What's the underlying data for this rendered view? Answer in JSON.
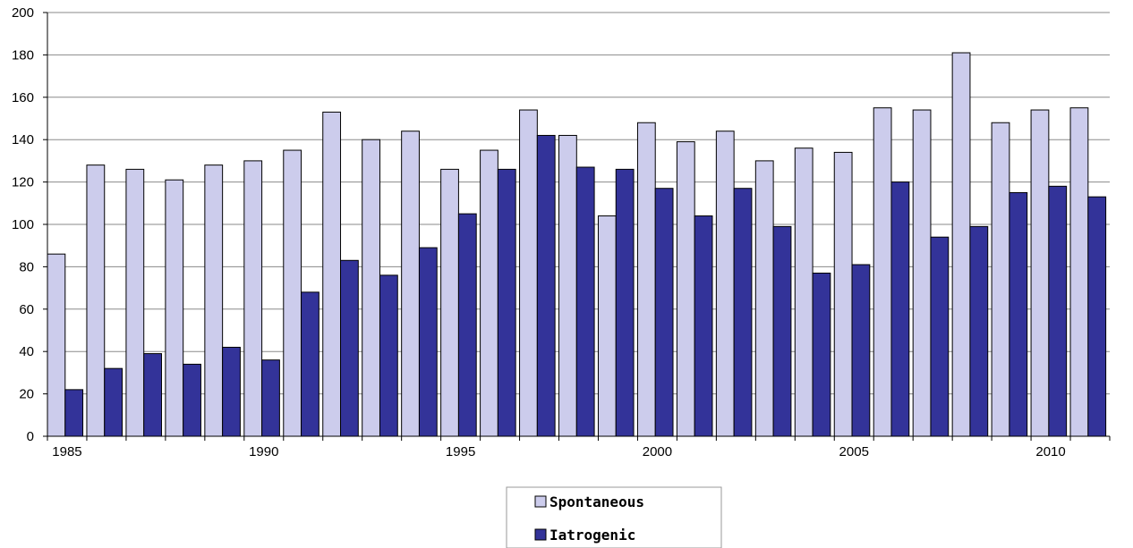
{
  "chart_data": {
    "type": "bar",
    "x": [
      1985,
      1986,
      1987,
      1988,
      1989,
      1990,
      1991,
      1992,
      1993,
      1994,
      1995,
      1996,
      1997,
      1998,
      1999,
      2000,
      2001,
      2002,
      2003,
      2004,
      2005,
      2006,
      2007,
      2008,
      2009,
      2010,
      2011
    ],
    "x_tick_labels": [
      "1985",
      "1990",
      "1995",
      "2000",
      "2005",
      "2010"
    ],
    "y_tick_labels": [
      "0",
      "20",
      "40",
      "60",
      "80",
      "100",
      "120",
      "140",
      "160",
      "180",
      "200"
    ],
    "ylim": [
      0,
      200
    ],
    "grid": true,
    "legend_position": "bottom-center",
    "series": [
      {
        "name": "Spontaneous",
        "color": "#ccccec",
        "values": [
          86,
          128,
          126,
          121,
          128,
          130,
          135,
          153,
          140,
          144,
          126,
          135,
          154,
          142,
          104,
          148,
          139,
          144,
          130,
          136,
          134,
          155,
          154,
          181,
          148,
          154,
          155
        ]
      },
      {
        "name": "Iatrogenic",
        "color": "#333399",
        "values": [
          22,
          32,
          39,
          34,
          42,
          36,
          68,
          83,
          76,
          89,
          105,
          126,
          142,
          127,
          126,
          117,
          104,
          117,
          99,
          77,
          81,
          120,
          94,
          99,
          115,
          118,
          113
        ]
      }
    ]
  }
}
